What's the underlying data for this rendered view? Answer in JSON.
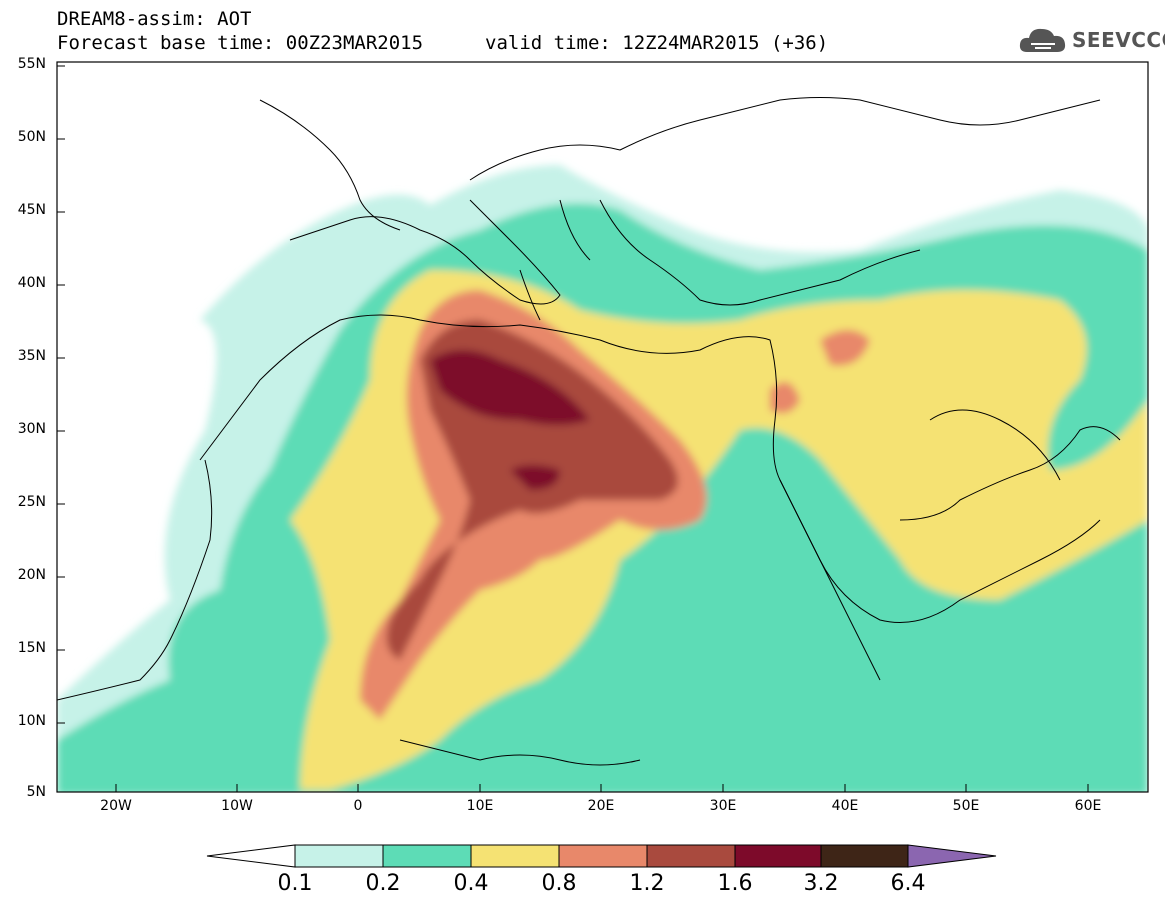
{
  "header": {
    "line1": "DREAM8-assim: AOT",
    "line2": "Forecast base time: 00Z23MAR2015",
    "valid": "valid time: 12Z24MAR2015 (+36)"
  },
  "logo": {
    "text": "SEEVCCC",
    "icon": "cloud-icon"
  },
  "map": {
    "lat_labels": [
      "55N",
      "50N",
      "45N",
      "40N",
      "35N",
      "30N",
      "25N",
      "20N",
      "15N",
      "10N",
      "5N"
    ],
    "lon_labels": [
      "20W",
      "10W",
      "0",
      "10E",
      "20E",
      "30E",
      "40E",
      "50E",
      "60E"
    ],
    "lon_range": [
      -25,
      65
    ],
    "lat_range": [
      5,
      55
    ]
  },
  "colorbar": {
    "levels": [
      "0.1",
      "0.2",
      "0.4",
      "0.8",
      "1.2",
      "1.6",
      "3.2",
      "6.4"
    ],
    "colors": [
      "#ffffff",
      "#c6f2e8",
      "#5ddcb6",
      "#f5e273",
      "#e8886a",
      "#a94a3e",
      "#7d0a2a",
      "#3e2517",
      "#8b66b0"
    ]
  }
}
